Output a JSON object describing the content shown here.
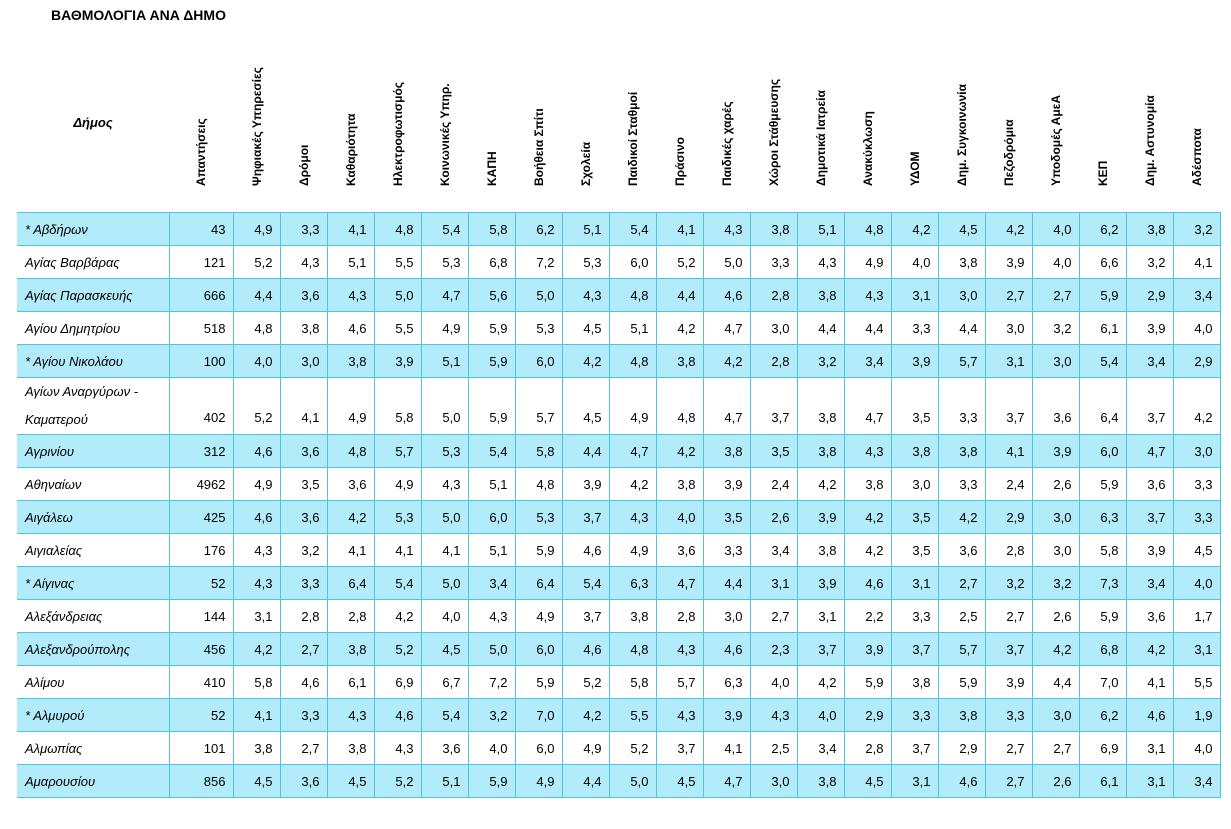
{
  "title": "ΒΑΘΜΟΛΟΓΙΑ ΑΝΑ ΔΗΜΟ",
  "header_name": "Δήμος",
  "columns": [
    "Απαντήσεις",
    "Ψηφιακές Υπηρεσίες",
    "Δρόμοι",
    "Καθαριότητα",
    "Ηλεκτροφωτισμός",
    "Κοινωνικές Υπηρ.",
    "ΚΑΠΗ",
    "Βοήθεια Σπίτι",
    "Σχολεία",
    "Παιδικοί Σταθμοί",
    "Πράσινο",
    "Παιδικές χαρές",
    "Χώροι Στάθμευσης",
    "Δημοτικά Ιατρεία",
    "Ανακύκλωση",
    "ΥΔΟΜ",
    "Δημ. Συγκοινωνία",
    "Πεζοδρόμια",
    "Υποδομές ΑμεΑ",
    "ΚΕΠ",
    "Δημ. Αστυνομία",
    "Αδέσποτα"
  ],
  "rows": [
    {
      "name": "* Αβδήρων",
      "values": [
        "43",
        "4,9",
        "3,3",
        "4,1",
        "4,8",
        "5,4",
        "5,8",
        "6,2",
        "5,1",
        "5,4",
        "4,1",
        "4,3",
        "3,8",
        "5,1",
        "4,8",
        "4,2",
        "4,5",
        "4,2",
        "4,0",
        "6,2",
        "3,8",
        "3,2"
      ]
    },
    {
      "name": "Αγίας Βαρβάρας",
      "values": [
        "121",
        "5,2",
        "4,3",
        "5,1",
        "5,5",
        "5,3",
        "6,8",
        "7,2",
        "5,3",
        "6,0",
        "5,2",
        "5,0",
        "3,3",
        "4,3",
        "4,9",
        "4,0",
        "3,8",
        "3,9",
        "4,0",
        "6,6",
        "3,2",
        "4,1"
      ]
    },
    {
      "name": "Αγίας Παρασκευής",
      "values": [
        "666",
        "4,4",
        "3,6",
        "4,3",
        "5,0",
        "4,7",
        "5,6",
        "5,0",
        "4,3",
        "4,8",
        "4,4",
        "4,6",
        "2,8",
        "3,8",
        "4,3",
        "3,1",
        "3,0",
        "2,7",
        "2,7",
        "5,9",
        "2,9",
        "3,4"
      ]
    },
    {
      "name": "Αγίου Δημητρίου",
      "values": [
        "518",
        "4,8",
        "3,8",
        "4,6",
        "5,5",
        "4,9",
        "5,9",
        "5,3",
        "4,5",
        "5,1",
        "4,2",
        "4,7",
        "3,0",
        "4,4",
        "4,4",
        "3,3",
        "4,4",
        "3,0",
        "3,2",
        "6,1",
        "3,9",
        "4,0"
      ]
    },
    {
      "name": "* Αγίου Νικολάου",
      "values": [
        "100",
        "4,0",
        "3,0",
        "3,8",
        "3,9",
        "5,1",
        "5,9",
        "6,0",
        "4,2",
        "4,8",
        "3,8",
        "4,2",
        "2,8",
        "3,2",
        "3,4",
        "3,9",
        "5,7",
        "3,1",
        "3,0",
        "5,4",
        "3,4",
        "2,9"
      ]
    },
    {
      "name": "Αγίων Αναργύρων - Καματερού",
      "values": [
        "402",
        "5,2",
        "4,1",
        "4,9",
        "5,8",
        "5,0",
        "5,9",
        "5,7",
        "4,5",
        "4,9",
        "4,8",
        "4,7",
        "3,7",
        "3,8",
        "4,7",
        "3,5",
        "3,3",
        "3,7",
        "3,6",
        "6,4",
        "3,7",
        "4,2"
      ]
    },
    {
      "name": "Αγρινίου",
      "values": [
        "312",
        "4,6",
        "3,6",
        "4,8",
        "5,7",
        "5,3",
        "5,4",
        "5,8",
        "4,4",
        "4,7",
        "4,2",
        "3,8",
        "3,5",
        "3,8",
        "4,3",
        "3,8",
        "3,8",
        "4,1",
        "3,9",
        "6,0",
        "4,7",
        "3,0"
      ]
    },
    {
      "name": "Αθηναίων",
      "values": [
        "4962",
        "4,9",
        "3,5",
        "3,6",
        "4,9",
        "4,3",
        "5,1",
        "4,8",
        "3,9",
        "4,2",
        "3,8",
        "3,9",
        "2,4",
        "4,2",
        "3,8",
        "3,0",
        "3,3",
        "2,4",
        "2,6",
        "5,9",
        "3,6",
        "3,3"
      ]
    },
    {
      "name": "Αιγάλεω",
      "values": [
        "425",
        "4,6",
        "3,6",
        "4,2",
        "5,3",
        "5,0",
        "6,0",
        "5,3",
        "3,7",
        "4,3",
        "4,0",
        "3,5",
        "2,6",
        "3,9",
        "4,2",
        "3,5",
        "4,2",
        "2,9",
        "3,0",
        "6,3",
        "3,7",
        "3,3"
      ]
    },
    {
      "name": "Αιγιαλείας",
      "values": [
        "176",
        "4,3",
        "3,2",
        "4,1",
        "4,1",
        "4,1",
        "5,1",
        "5,9",
        "4,6",
        "4,9",
        "3,6",
        "3,3",
        "3,4",
        "3,8",
        "4,2",
        "3,5",
        "3,6",
        "2,8",
        "3,0",
        "5,8",
        "3,9",
        "4,5"
      ]
    },
    {
      "name": "* Αίγινας",
      "values": [
        "52",
        "4,3",
        "3,3",
        "6,4",
        "5,4",
        "5,0",
        "3,4",
        "6,4",
        "5,4",
        "6,3",
        "4,7",
        "4,4",
        "3,1",
        "3,9",
        "4,6",
        "3,1",
        "2,7",
        "3,2",
        "3,2",
        "7,3",
        "3,4",
        "4,0"
      ]
    },
    {
      "name": "Αλεξάνδρειας",
      "values": [
        "144",
        "3,1",
        "2,8",
        "2,8",
        "4,2",
        "4,0",
        "4,3",
        "4,9",
        "3,7",
        "3,8",
        "2,8",
        "3,0",
        "2,7",
        "3,1",
        "2,2",
        "3,3",
        "2,5",
        "2,7",
        "2,6",
        "5,9",
        "3,6",
        "1,7"
      ]
    },
    {
      "name": "Αλεξανδρούπολης",
      "values": [
        "456",
        "4,2",
        "2,7",
        "3,8",
        "5,2",
        "4,5",
        "5,0",
        "6,0",
        "4,6",
        "4,8",
        "4,3",
        "4,6",
        "2,3",
        "3,7",
        "3,9",
        "3,7",
        "5,7",
        "3,7",
        "4,2",
        "6,8",
        "4,2",
        "3,1"
      ]
    },
    {
      "name": "Αλίμου",
      "values": [
        "410",
        "5,8",
        "4,6",
        "6,1",
        "6,9",
        "6,7",
        "7,2",
        "5,9",
        "5,2",
        "5,8",
        "5,7",
        "6,3",
        "4,0",
        "4,2",
        "5,9",
        "3,8",
        "5,9",
        "3,9",
        "4,4",
        "7,0",
        "4,1",
        "5,5"
      ]
    },
    {
      "name": "* Αλμυρού",
      "values": [
        "52",
        "4,1",
        "3,3",
        "4,3",
        "4,6",
        "5,4",
        "3,2",
        "7,0",
        "4,2",
        "5,5",
        "4,3",
        "3,9",
        "4,3",
        "4,0",
        "2,9",
        "3,3",
        "3,8",
        "3,3",
        "3,0",
        "6,2",
        "4,6",
        "1,9"
      ]
    },
    {
      "name": "Αλμωπίας",
      "values": [
        "101",
        "3,8",
        "2,7",
        "3,8",
        "4,3",
        "3,6",
        "4,0",
        "6,0",
        "4,9",
        "5,2",
        "3,7",
        "4,1",
        "2,5",
        "3,4",
        "2,8",
        "3,7",
        "2,9",
        "2,7",
        "2,7",
        "6,9",
        "3,1",
        "4,0"
      ]
    },
    {
      "name": "Αμαρουσίου",
      "values": [
        "856",
        "4,5",
        "3,6",
        "4,5",
        "5,2",
        "5,1",
        "5,9",
        "4,9",
        "4,4",
        "5,0",
        "4,5",
        "4,7",
        "3,0",
        "3,8",
        "4,5",
        "3,1",
        "4,6",
        "2,7",
        "2,6",
        "6,1",
        "3,1",
        "3,4"
      ]
    }
  ]
}
